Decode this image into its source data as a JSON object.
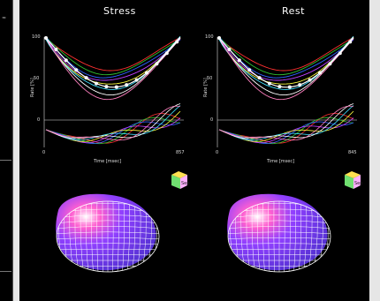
{
  "left_panel": {
    "glyph": "≈"
  },
  "panels": [
    {
      "id": "stress",
      "title": "Stress",
      "y_ticks": [
        "100",
        "50",
        "0"
      ],
      "ylabel": "Rate [%]",
      "xlabel": "Time [msec]",
      "x_min": "0",
      "x_max": "857",
      "cube_label": "Sep"
    },
    {
      "id": "rest",
      "title": "Rest",
      "y_ticks": [
        "100",
        "50",
        "0"
      ],
      "ylabel": "Rate [%]",
      "xlabel": "Time [msec]",
      "x_min": "0",
      "x_max": "845",
      "cube_label": "Sep"
    }
  ],
  "colors": {
    "background": "#000000",
    "curves": [
      "#ff3030",
      "#30c030",
      "#3060ff",
      "#c040ff",
      "#ffff40",
      "#40e0ff",
      "#ffffff",
      "#ff80c0"
    ],
    "mean_curve": "#ffffff",
    "mean_points": "#ffffff",
    "mesh": "#ffffff",
    "surface": "#a050ff"
  }
}
